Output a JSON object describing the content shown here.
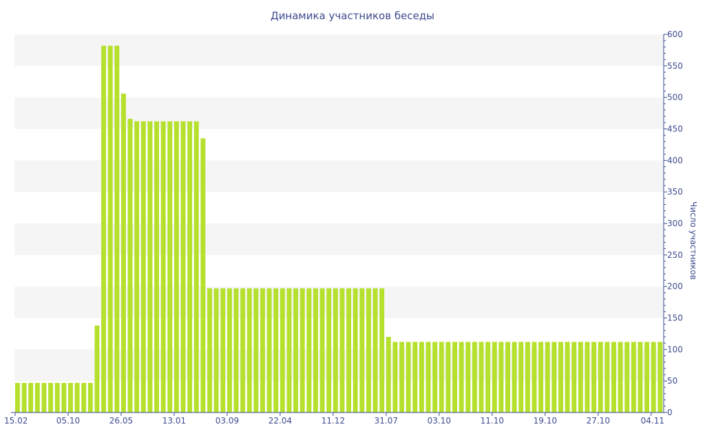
{
  "chart_data": {
    "type": "bar",
    "title": "Динамика участников беседы",
    "ylabel": "Число участников",
    "xlabel": "",
    "ylim": [
      0,
      600
    ],
    "y_ticks": [
      0,
      50,
      100,
      150,
      200,
      250,
      300,
      350,
      400,
      450,
      500,
      550,
      600
    ],
    "y_axis_side": "right",
    "grid": "alternating horizontal bands",
    "x_tick_labels": [
      "15.02",
      "05.10",
      "26.05",
      "13.01",
      "03.09",
      "22.04",
      "11.12",
      "31.07",
      "03.10",
      "11.10",
      "19.10",
      "27.10",
      "04.11"
    ],
    "x_tick_positions": [
      0,
      8,
      16,
      24,
      32,
      40,
      48,
      56,
      64,
      72,
      80,
      88,
      96
    ],
    "bar_color": "#b5e02c",
    "values": [
      47,
      47,
      47,
      47,
      47,
      47,
      47,
      47,
      47,
      47,
      47,
      47,
      138,
      582,
      582,
      582,
      506,
      466,
      462,
      462,
      462,
      462,
      462,
      462,
      462,
      462,
      462,
      462,
      435,
      197,
      197,
      197,
      197,
      197,
      197,
      197,
      197,
      197,
      197,
      197,
      197,
      197,
      197,
      197,
      197,
      197,
      197,
      197,
      197,
      197,
      197,
      197,
      197,
      197,
      197,
      197,
      120,
      112,
      112,
      112,
      112,
      112,
      112,
      112,
      112,
      112,
      112,
      112,
      112,
      112,
      112,
      112,
      112,
      112,
      112,
      112,
      112,
      112,
      112,
      112,
      112,
      112,
      112,
      112,
      112,
      112,
      112,
      112,
      112,
      112,
      112,
      112,
      112,
      112,
      112,
      112,
      112,
      112
    ]
  }
}
